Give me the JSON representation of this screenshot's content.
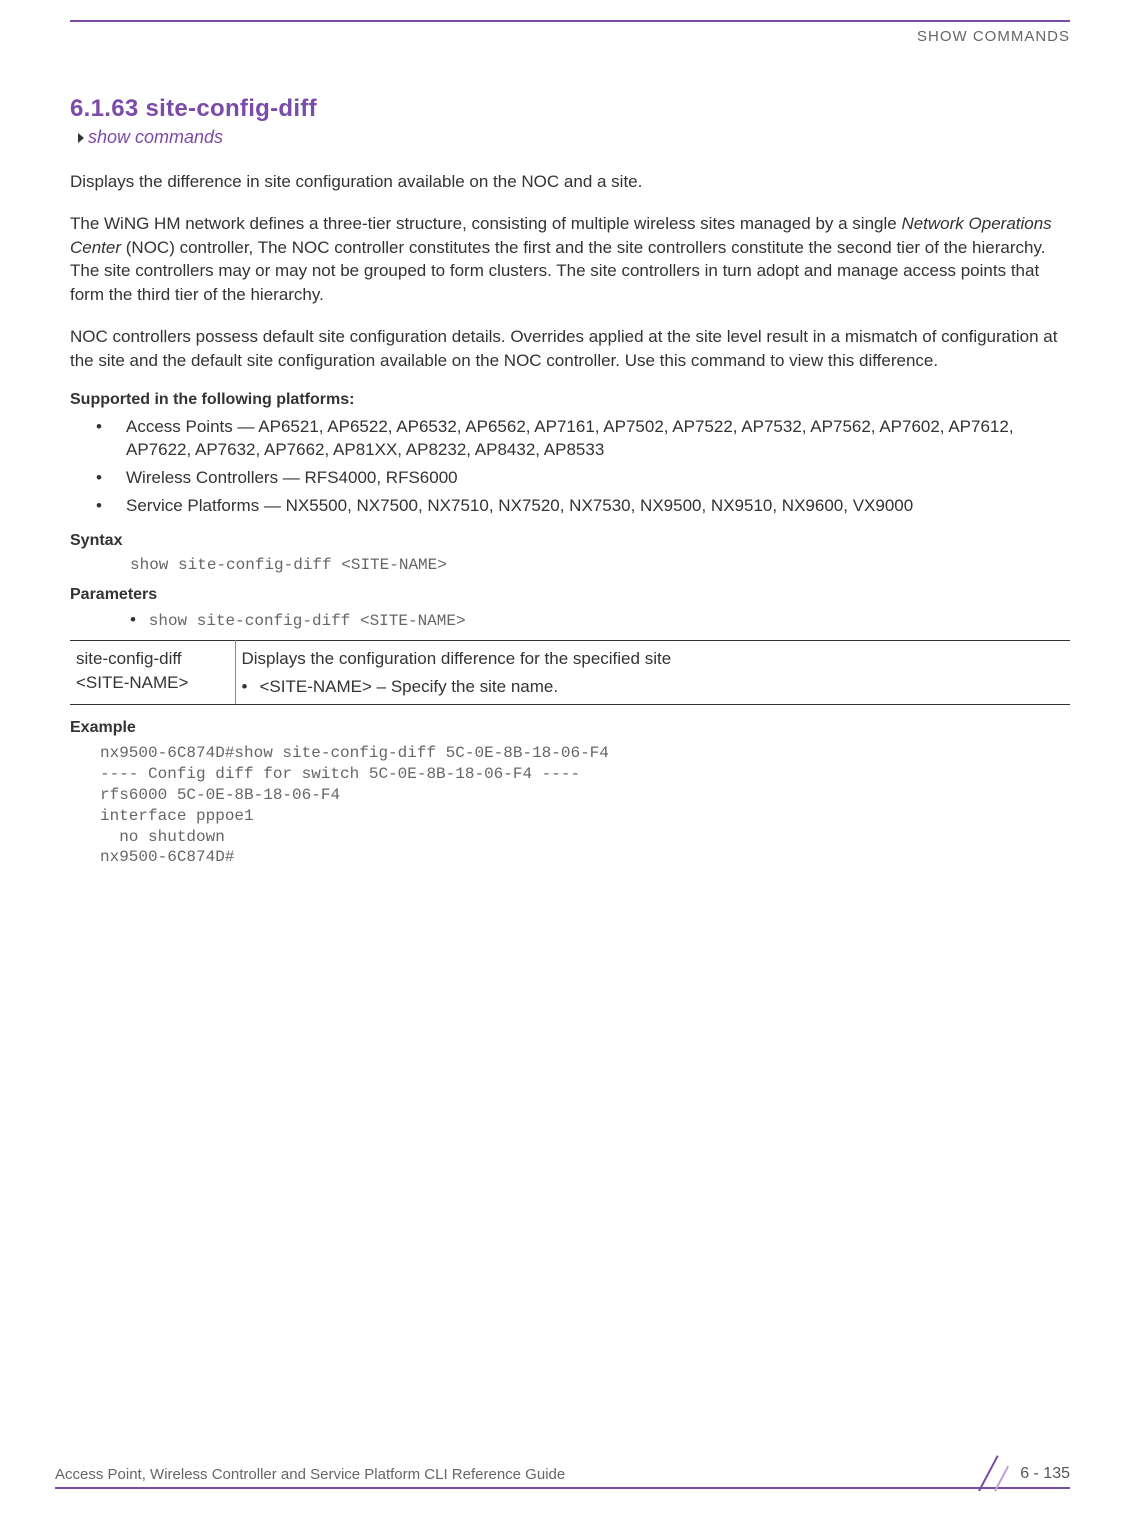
{
  "colors": {
    "accent": "#7b4ba8",
    "accent_light": "#c29fd8",
    "text": "#333333",
    "muted": "#666666"
  },
  "header": {
    "label": "SHOW COMMANDS"
  },
  "section": {
    "number_title": "6.1.63 site-config-diff",
    "breadcrumb": "show commands"
  },
  "paragraphs": {
    "p1": "Displays the difference in site configuration available on the NOC and a site.",
    "p2_pre": "The WiNG HM network defines a three-tier structure, consisting of multiple wireless sites managed by a single ",
    "p2_italic": "Network Operations Center",
    "p2_post": " (NOC) controller, The NOC controller constitutes the first and the site controllers constitute the second tier of the hierarchy. The site controllers may or may not be grouped to form clusters. The site controllers in turn adopt and manage access points that form the third tier of the hierarchy.",
    "p3": "NOC controllers possess default site configuration details. Overrides applied at the site level result in a mismatch of configuration at the site and the default site configuration available on the NOC controller. Use this command to view this difference."
  },
  "supported": {
    "heading": "Supported in the following platforms:",
    "items": [
      "Access Points — AP6521, AP6522, AP6532, AP6562, AP7161, AP7502, AP7522, AP7532, AP7562, AP7602, AP7612, AP7622, AP7632, AP7662, AP81XX, AP8232, AP8432, AP8533",
      "Wireless Controllers — RFS4000, RFS6000",
      "Service Platforms — NX5500, NX7500, NX7510, NX7520, NX7530, NX9500, NX9510, NX9600, VX9000"
    ]
  },
  "syntax": {
    "heading": "Syntax",
    "line": "show site-config-diff <SITE-NAME>"
  },
  "parameters": {
    "heading": "Parameters",
    "line": "show site-config-diff <SITE-NAME>",
    "table": {
      "cell_left_l1": "site-config-diff",
      "cell_left_l2": "<SITE-NAME>",
      "cell_right_l1": "Displays the configuration difference for the specified site",
      "cell_right_l2": "<SITE-NAME> – Specify the site name."
    }
  },
  "example": {
    "heading": "Example",
    "lines": "nx9500-6C874D#show site-config-diff 5C-0E-8B-18-06-F4\n---- Config diff for switch 5C-0E-8B-18-06-F4 ----\nrfs6000 5C-0E-8B-18-06-F4\ninterface pppoe1\n  no shutdown\nnx9500-6C874D#"
  },
  "footer": {
    "guide": "Access Point, Wireless Controller and Service Platform CLI Reference Guide",
    "page": "6 - 135"
  }
}
